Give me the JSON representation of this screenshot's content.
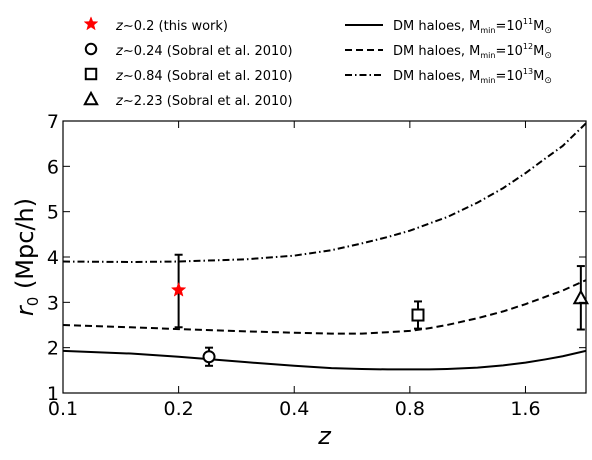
{
  "chart_data": {
    "type": "scatter",
    "title": "",
    "xlabel": "z",
    "ylabel": "r0 (Mpc/h)",
    "xscale": "log",
    "xlim": [
      0.1,
      2.3
    ],
    "ylim": [
      1,
      7
    ],
    "xticks": [
      0.1,
      0.2,
      0.4,
      0.8,
      1.6
    ],
    "xtick_labels": [
      "0.1",
      "0.2",
      "0.4",
      "0.8",
      "1.6"
    ],
    "yticks": [
      1,
      2,
      3,
      4,
      5,
      6,
      7
    ],
    "ytick_labels": [
      "1",
      "2",
      "3",
      "4",
      "5",
      "6",
      "7"
    ],
    "grid": false,
    "legend_placement": "above plot, two columns",
    "points": [
      {
        "label": "z∼0.2 (this work)",
        "marker": "star",
        "color": "#ff0000",
        "x": 0.2,
        "y": 3.27,
        "yerr": [
          0.82,
          0.78
        ]
      },
      {
        "label": "z∼0.24 (Sobral et al. 2010)",
        "marker": "circle",
        "color": "#000000",
        "x": 0.24,
        "y": 1.8,
        "yerr": [
          0.2,
          0.2
        ]
      },
      {
        "label": "z∼0.84 (Sobral et al. 2010)",
        "marker": "square",
        "color": "#000000",
        "x": 0.84,
        "y": 2.72,
        "yerr": [
          0.3,
          0.3
        ]
      },
      {
        "label": "z∼2.23 (Sobral et al. 2010)",
        "marker": "triangle",
        "color": "#000000",
        "x": 2.23,
        "y": 3.1,
        "yerr": [
          0.7,
          0.7
        ]
      }
    ],
    "lines": [
      {
        "label": "DM haloes, M",
        "label_sub": "min",
        "label_mid": "=10",
        "label_sup": "11",
        "label_unit": "M",
        "label_unit_sub": "⊙",
        "dash": "solid",
        "x": [
          0.1,
          0.15,
          0.2,
          0.3,
          0.4,
          0.5,
          0.6,
          0.7,
          0.8,
          0.9,
          1.0,
          1.2,
          1.4,
          1.6,
          1.8,
          2.0,
          2.3
        ],
        "y": [
          1.93,
          1.87,
          1.8,
          1.68,
          1.6,
          1.55,
          1.53,
          1.52,
          1.52,
          1.52,
          1.53,
          1.56,
          1.61,
          1.67,
          1.74,
          1.81,
          1.93
        ]
      },
      {
        "label": "DM haloes, M",
        "label_sub": "min",
        "label_mid": "=10",
        "label_sup": "12",
        "label_unit": "M",
        "label_unit_sub": "⊙",
        "dash": "dashed",
        "x": [
          0.1,
          0.15,
          0.2,
          0.3,
          0.4,
          0.5,
          0.6,
          0.7,
          0.8,
          0.9,
          1.0,
          1.2,
          1.4,
          1.6,
          1.8,
          2.0,
          2.3
        ],
        "y": [
          2.5,
          2.45,
          2.41,
          2.36,
          2.33,
          2.31,
          2.31,
          2.34,
          2.37,
          2.43,
          2.5,
          2.65,
          2.8,
          2.96,
          3.12,
          3.26,
          3.49
        ]
      },
      {
        "label": "DM haloes, M",
        "label_sub": "min",
        "label_mid": "=10",
        "label_sup": "13",
        "label_unit": "M",
        "label_unit_sub": "⊙",
        "dash": "dashdot",
        "x": [
          0.1,
          0.15,
          0.2,
          0.3,
          0.4,
          0.5,
          0.6,
          0.7,
          0.8,
          0.9,
          1.0,
          1.2,
          1.4,
          1.6,
          1.8,
          2.0,
          2.3
        ],
        "y": [
          3.9,
          3.89,
          3.9,
          3.95,
          4.03,
          4.15,
          4.3,
          4.44,
          4.58,
          4.74,
          4.88,
          5.2,
          5.52,
          5.85,
          6.17,
          6.45,
          6.95
        ]
      }
    ]
  }
}
